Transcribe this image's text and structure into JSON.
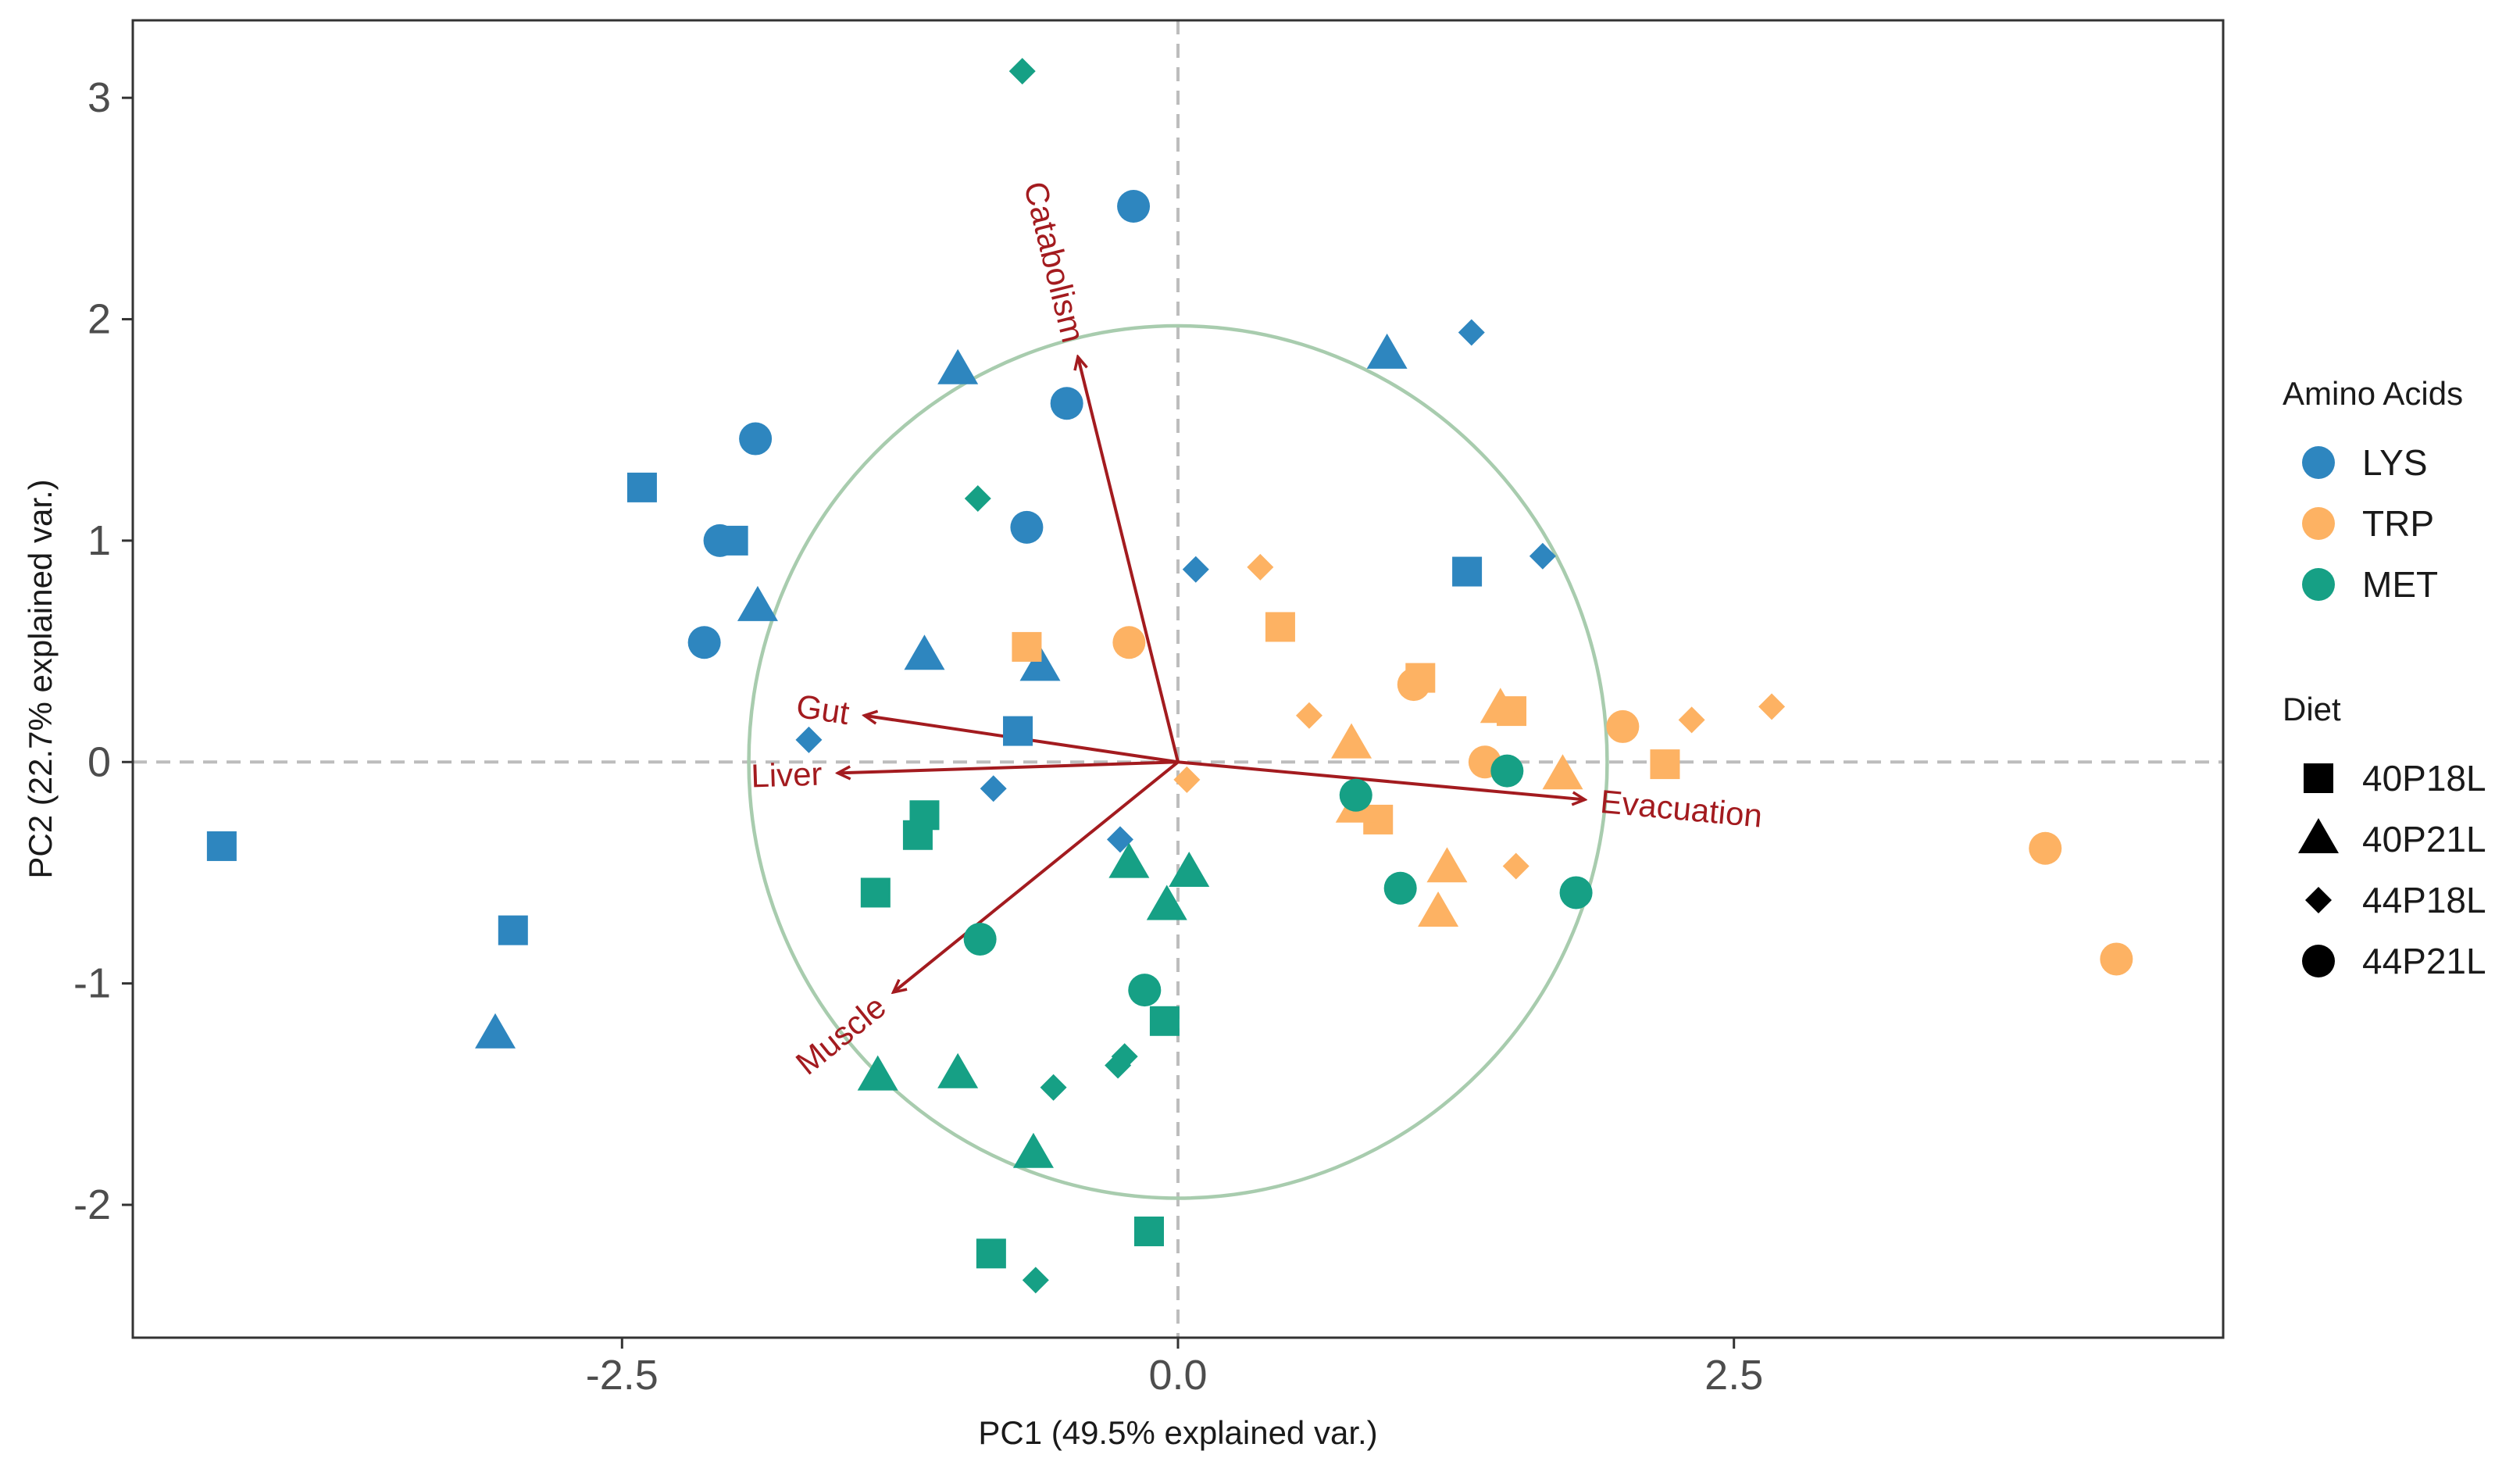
{
  "chart_data": {
    "type": "scatter",
    "subtype": "pca-biplot",
    "xlabel": "PC1 (49.5% explained var.)",
    "ylabel": "PC2 (22.7% explained var.)",
    "xlim": [
      -4.7,
      4.7
    ],
    "ylim": [
      -2.6,
      3.35
    ],
    "x_ticks": [
      {
        "value": -2.5,
        "label": "-2.5"
      },
      {
        "value": 0.0,
        "label": "0.0"
      },
      {
        "value": 2.5,
        "label": "2.5"
      }
    ],
    "y_ticks": [
      {
        "value": -2,
        "label": "-2"
      },
      {
        "value": -1,
        "label": "-1"
      },
      {
        "value": 0,
        "label": "0"
      },
      {
        "value": 1,
        "label": "1"
      },
      {
        "value": 2,
        "label": "2"
      },
      {
        "value": 3,
        "label": "3"
      }
    ],
    "grid": false,
    "reference_lines": {
      "x": 0,
      "y": 0,
      "style": "dashed"
    },
    "correlation_circle": {
      "center": [
        0,
        0
      ],
      "radius_x": 1.93,
      "radius_y": 1.97,
      "color": "#a8ccae"
    },
    "loadings": [
      {
        "name": "Catabolism",
        "x": -0.45,
        "y": 1.83
      },
      {
        "name": "Gut",
        "x": -1.41,
        "y": 0.21
      },
      {
        "name": "Liver",
        "x": -1.53,
        "y": -0.05
      },
      {
        "name": "Muscle",
        "x": -1.28,
        "y": -1.04
      },
      {
        "name": "Evacuation",
        "x": 1.83,
        "y": -0.17
      }
    ],
    "legend": {
      "placement": "right",
      "color_title": "Amino Acids",
      "color_entries": [
        {
          "label": "LYS",
          "color": "#2e86bf"
        },
        {
          "label": "TRP",
          "color": "#fdb263"
        },
        {
          "label": "MET",
          "color": "#16a085"
        }
      ],
      "shape_title": "Diet",
      "shape_entries": [
        {
          "label": "40P18L",
          "shape": "square"
        },
        {
          "label": "40P21L",
          "shape": "triangle"
        },
        {
          "label": "44P18L",
          "shape": "diamond"
        },
        {
          "label": "44P21L",
          "shape": "circle"
        }
      ]
    },
    "series": [
      {
        "amino_acid": "LYS",
        "diet": "40P18L",
        "points": [
          [
            -2.41,
            1.24
          ],
          [
            -2.0,
            1.0
          ],
          [
            -4.3,
            -0.38
          ],
          [
            -2.99,
            -0.76
          ],
          [
            1.3,
            0.86
          ],
          [
            -0.72,
            0.14
          ]
        ]
      },
      {
        "amino_acid": "LYS",
        "diet": "40P21L",
        "points": [
          [
            -0.99,
            1.77
          ],
          [
            -1.89,
            0.7
          ],
          [
            -3.07,
            -1.23
          ],
          [
            -1.14,
            0.48
          ],
          [
            -0.62,
            0.43
          ],
          [
            0.94,
            1.84
          ]
        ]
      },
      {
        "amino_acid": "LYS",
        "diet": "44P18L",
        "points": [
          [
            1.32,
            1.94
          ],
          [
            1.64,
            0.93
          ],
          [
            0.08,
            0.87
          ],
          [
            -1.66,
            0.1
          ],
          [
            -0.83,
            -0.12
          ],
          [
            -0.26,
            -0.35
          ]
        ]
      },
      {
        "amino_acid": "LYS",
        "diet": "44P21L",
        "points": [
          [
            -0.2,
            2.51
          ],
          [
            -0.5,
            1.62
          ],
          [
            -1.9,
            1.46
          ],
          [
            -2.06,
            1.0
          ],
          [
            -0.68,
            1.06
          ],
          [
            -2.13,
            0.54
          ]
        ]
      },
      {
        "amino_acid": "TRP",
        "diet": "40P18L",
        "points": [
          [
            -0.68,
            0.52
          ],
          [
            0.46,
            0.61
          ],
          [
            1.09,
            0.38
          ],
          [
            1.5,
            0.23
          ],
          [
            2.19,
            -0.01
          ],
          [
            0.9,
            -0.26
          ]
        ]
      },
      {
        "amino_acid": "TRP",
        "diet": "40P21L",
        "points": [
          [
            0.78,
            0.08
          ],
          [
            0.8,
            -0.21
          ],
          [
            1.45,
            0.24
          ],
          [
            1.73,
            -0.06
          ],
          [
            1.21,
            -0.48
          ],
          [
            1.17,
            -0.68
          ]
        ]
      },
      {
        "amino_acid": "TRP",
        "diet": "44P18L",
        "points": [
          [
            0.37,
            0.88
          ],
          [
            0.59,
            0.21
          ],
          [
            2.31,
            0.19
          ],
          [
            2.67,
            0.25
          ],
          [
            1.52,
            -0.47
          ],
          [
            0.04,
            -0.08
          ]
        ]
      },
      {
        "amino_acid": "TRP",
        "diet": "44P21L",
        "points": [
          [
            -0.22,
            0.54
          ],
          [
            1.06,
            0.35
          ],
          [
            1.38,
            0.0
          ],
          [
            2.0,
            0.16
          ],
          [
            3.9,
            -0.39
          ],
          [
            4.22,
            -0.89
          ]
        ]
      },
      {
        "amino_acid": "MET",
        "diet": "40P18L",
        "points": [
          [
            -1.14,
            -0.24
          ],
          [
            -1.17,
            -0.33
          ],
          [
            -1.36,
            -0.59
          ],
          [
            -0.06,
            -1.17
          ],
          [
            -0.84,
            -2.22
          ],
          [
            -0.13,
            -2.12
          ]
        ]
      },
      {
        "amino_acid": "MET",
        "diet": "40P21L",
        "points": [
          [
            -0.22,
            -0.46
          ],
          [
            0.05,
            -0.5
          ],
          [
            -0.05,
            -0.65
          ],
          [
            -0.99,
            -1.41
          ],
          [
            -1.35,
            -1.42
          ],
          [
            -0.65,
            -1.77
          ]
        ]
      },
      {
        "amino_acid": "MET",
        "diet": "44P18L",
        "points": [
          [
            -0.7,
            3.12
          ],
          [
            -0.9,
            1.19
          ],
          [
            -0.56,
            -1.47
          ],
          [
            -0.24,
            -1.33
          ],
          [
            -0.27,
            -1.37
          ],
          [
            -0.64,
            -2.34
          ]
        ]
      },
      {
        "amino_acid": "MET",
        "diet": "44P21L",
        "points": [
          [
            0.8,
            -0.15
          ],
          [
            1.48,
            -0.04
          ],
          [
            1.0,
            -0.57
          ],
          [
            1.79,
            -0.59
          ],
          [
            -0.89,
            -0.8
          ],
          [
            -0.15,
            -1.03
          ]
        ]
      }
    ]
  }
}
